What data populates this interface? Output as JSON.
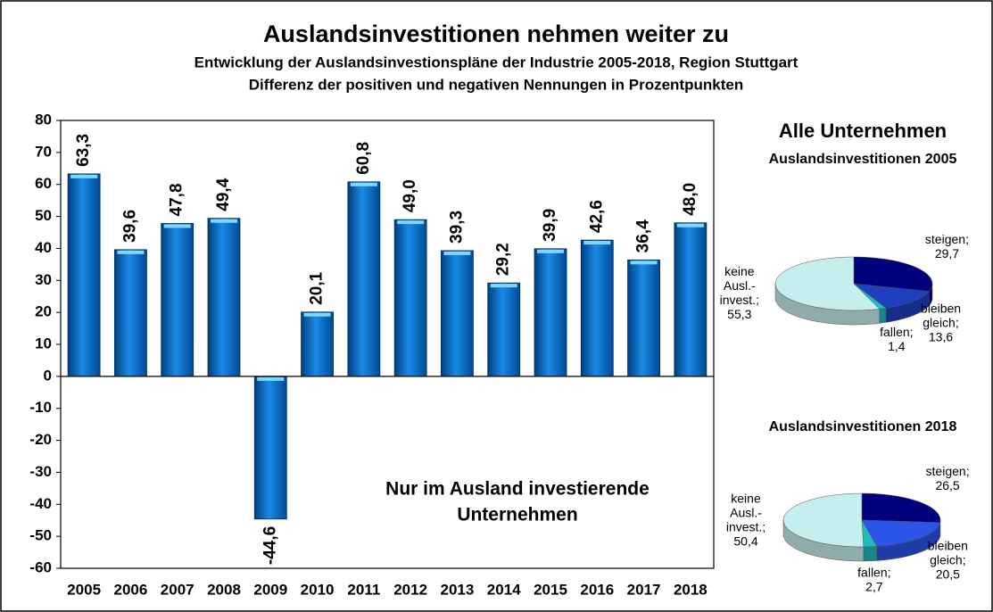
{
  "chart_data": [
    {
      "type": "bar",
      "title": "Auslandsinvestitionen nehmen weiter zu",
      "subtitle": [
        "Entwicklung der Auslandsinvestionspläne der Industrie 2005-2018, Region Stuttgart",
        "Differenz der positiven und negativen Nennungen in Prozentpunkten"
      ],
      "annotation": [
        "Nur im Ausland investierende",
        "Unternehmen"
      ],
      "categories": [
        "2005",
        "2006",
        "2007",
        "2008",
        "2009",
        "2010",
        "2011",
        "2012",
        "2013",
        "2014",
        "2015",
        "2016",
        "2017",
        "2018"
      ],
      "values": [
        63.3,
        39.6,
        47.8,
        49.4,
        -44.6,
        20.1,
        60.8,
        49.0,
        39.3,
        29.2,
        39.9,
        42.6,
        36.4,
        48.0
      ],
      "value_labels": [
        "63,3",
        "39,6",
        "47,8",
        "49,4",
        "-44,6",
        "20,1",
        "60,8",
        "49,0",
        "39,3",
        "29,2",
        "39,9",
        "42,6",
        "36,4",
        "48,0"
      ],
      "color": "#0a73c8",
      "ylim": [
        -60,
        80
      ],
      "yticks": [
        80,
        70,
        60,
        50,
        40,
        30,
        20,
        10,
        0,
        -10,
        -20,
        -30,
        -40,
        -50,
        -60
      ],
      "grid": false
    },
    {
      "type": "pie",
      "title": "Alle Unternehmen",
      "subtitle": "Auslandsinvestitionen 2005",
      "categories": [
        [
          "steigen;"
        ],
        [
          "bleiben",
          "gleich;"
        ],
        [
          "fallen;"
        ],
        [
          "keine",
          "Ausl.-",
          "invest.;"
        ]
      ],
      "values": [
        29.7,
        13.6,
        1.4,
        55.3
      ],
      "value_labels": [
        "29,7",
        "13,6",
        "1,4",
        "55,3"
      ],
      "colors": [
        "#00007f",
        "#1f3fbf",
        "#22bbbb",
        "#c6eeee"
      ]
    },
    {
      "type": "pie",
      "subtitle": "Auslandsinvestitionen 2018",
      "categories": [
        [
          "steigen;"
        ],
        [
          "bleiben",
          "gleich;"
        ],
        [
          "fallen;"
        ],
        [
          "keine",
          "Ausl.-",
          "invest.;"
        ]
      ],
      "values": [
        26.5,
        20.5,
        2.7,
        50.4
      ],
      "value_labels": [
        "26,5",
        "20,5",
        "2,7",
        "50,4"
      ],
      "colors": [
        "#00007f",
        "#2a55e8",
        "#22bbbb",
        "#c6eeee"
      ]
    }
  ]
}
